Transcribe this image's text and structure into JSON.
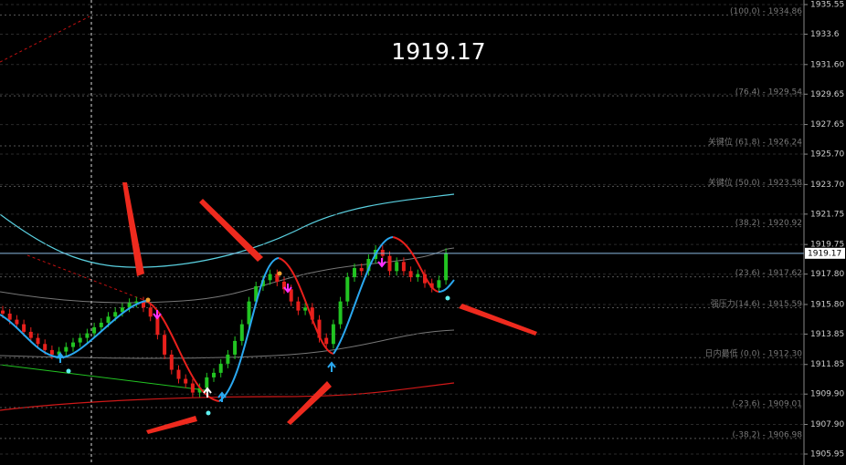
{
  "chart_data": {
    "type": "candlestick",
    "current_price": 1919.17,
    "ylim": [
      1905.23,
      1935.85
    ],
    "yticks": [
      1935.55,
      1933.6,
      {
        "value": 1931.6,
        "label": "1931.60"
      },
      1929.65,
      1927.65,
      {
        "value": 1925.7,
        "label": "1925.70"
      },
      {
        "value": 1923.7,
        "label": "1923.70"
      },
      1921.75,
      1919.75,
      {
        "value": 1917.8,
        "label": "1917.80"
      },
      {
        "value": 1915.8,
        "label": "1915.80"
      },
      1913.85,
      1911.85,
      {
        "value": 1909.9,
        "label": "1909.90"
      },
      {
        "value": 1907.9,
        "label": "1907.90"
      },
      1905.95
    ],
    "levels": [
      {
        "value": 1934.86,
        "label": "(100.0) - 1934.86"
      },
      {
        "value": 1929.54,
        "label": "(76.4) - 1929.54"
      },
      {
        "value": 1926.24,
        "label": "关键位 (61.8) - 1926.24"
      },
      {
        "value": 1923.58,
        "label": "关键位 (50.0) - 1923.58"
      },
      {
        "value": 1920.92,
        "label": "(38.2) - 1920.92"
      },
      {
        "value": 1917.62,
        "label": "(23.6) - 1917.62"
      },
      {
        "value": 1915.59,
        "label": "强压力(14.6) - 1915.59"
      },
      {
        "value": 1912.3,
        "label": "日内最低 (0.0) - 1912.30"
      },
      {
        "value": 1909.01,
        "label": "(-23.6) - 1909.01"
      },
      {
        "value": 1906.98,
        "label": "(-38.2) - 1906.98"
      }
    ],
    "up_color": "#22c422",
    "down_color": "#e8201c",
    "open": [
      1915.4,
      1915.2,
      1914.8,
      1914.5,
      1914.0,
      1913.6,
      1913.2,
      1912.8,
      1912.5,
      1912.7,
      1913.0,
      1913.3,
      1913.6,
      1913.9,
      1914.3,
      1914.6,
      1915.0,
      1915.3,
      1915.6,
      1915.9,
      1916.0,
      1915.6,
      1915.0,
      1913.8,
      1912.5,
      1911.5,
      1910.9,
      1910.6,
      1910.0,
      1910.3,
      1911.0,
      1911.3,
      1911.9,
      1912.5,
      1913.4,
      1914.5,
      1916.0,
      1917.0,
      1917.4,
      1917.8,
      1917.3,
      1916.8,
      1916.0,
      1915.4,
      1915.6,
      1914.8,
      1913.6,
      1913.2,
      1914.5,
      1916.0,
      1917.6,
      1918.2,
      1918.0,
      1918.8,
      1919.4,
      1919.0,
      1918.0,
      1918.6,
      1918.0,
      1917.6,
      1917.8,
      1917.2,
      1916.9,
      1917.4
    ],
    "high": [
      1915.7,
      1915.5,
      1915.1,
      1914.8,
      1914.3,
      1913.9,
      1913.5,
      1913.1,
      1913.0,
      1913.3,
      1913.6,
      1913.9,
      1914.2,
      1914.6,
      1914.9,
      1915.3,
      1915.6,
      1915.9,
      1916.2,
      1916.3,
      1916.3,
      1915.9,
      1915.3,
      1914.1,
      1912.8,
      1911.8,
      1911.2,
      1910.9,
      1910.6,
      1911.3,
      1911.6,
      1912.2,
      1912.8,
      1913.7,
      1914.8,
      1916.3,
      1917.3,
      1917.7,
      1918.1,
      1918.1,
      1917.6,
      1917.1,
      1916.3,
      1915.9,
      1915.9,
      1915.1,
      1913.9,
      1914.8,
      1916.3,
      1917.9,
      1918.5,
      1918.5,
      1919.1,
      1919.7,
      1919.7,
      1919.3,
      1918.9,
      1918.9,
      1918.3,
      1918.1,
      1918.1,
      1917.5,
      1917.7,
      1919.5
    ],
    "low": [
      1914.9,
      1914.5,
      1914.2,
      1913.7,
      1913.3,
      1912.9,
      1912.5,
      1912.2,
      1912.2,
      1912.4,
      1912.7,
      1913.0,
      1913.3,
      1913.6,
      1914.0,
      1914.3,
      1914.7,
      1915.0,
      1915.3,
      1915.6,
      1915.3,
      1914.7,
      1913.5,
      1912.2,
      1911.2,
      1910.6,
      1910.3,
      1909.7,
      1909.7,
      1910.0,
      1910.7,
      1911.0,
      1911.6,
      1912.2,
      1913.1,
      1914.2,
      1915.7,
      1916.7,
      1917.1,
      1917.0,
      1916.5,
      1915.7,
      1915.1,
      1915.1,
      1914.5,
      1913.3,
      1912.9,
      1912.9,
      1914.2,
      1915.7,
      1917.3,
      1917.7,
      1917.7,
      1918.5,
      1918.7,
      1917.7,
      1917.7,
      1917.7,
      1917.3,
      1917.3,
      1916.9,
      1916.6,
      1916.6,
      1917.1
    ],
    "close": [
      1915.2,
      1914.8,
      1914.5,
      1914.0,
      1913.6,
      1913.2,
      1912.8,
      1912.5,
      1912.7,
      1913.0,
      1913.3,
      1913.6,
      1913.9,
      1914.3,
      1914.6,
      1915.0,
      1915.3,
      1915.6,
      1915.9,
      1916.0,
      1915.6,
      1915.0,
      1913.8,
      1912.5,
      1911.5,
      1910.9,
      1910.6,
      1910.0,
      1910.3,
      1911.0,
      1911.3,
      1911.9,
      1912.5,
      1913.4,
      1914.5,
      1916.0,
      1917.0,
      1917.4,
      1917.8,
      1917.3,
      1916.8,
      1916.0,
      1915.4,
      1915.6,
      1914.8,
      1913.6,
      1913.2,
      1914.5,
      1916.0,
      1917.6,
      1918.2,
      1918.0,
      1918.8,
      1919.4,
      1919.0,
      1918.0,
      1918.6,
      1918.0,
      1917.6,
      1917.8,
      1917.2,
      1916.9,
      1917.4,
      1919.17
    ]
  }
}
